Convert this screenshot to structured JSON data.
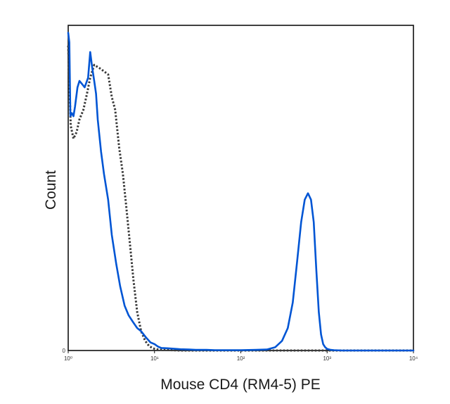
{
  "chart_data": {
    "type": "line",
    "title": "",
    "xlabel": "Mouse CD4 (RM4-5) PE",
    "ylabel": "Count",
    "x_scale": "log",
    "xlim": [
      1,
      10000
    ],
    "ylim": [
      0,
      1
    ],
    "x_ticks": [
      {
        "value": 1,
        "label": "10⁰"
      },
      {
        "value": 10,
        "label": "10¹"
      },
      {
        "value": 100,
        "label": "10²"
      },
      {
        "value": 1000,
        "label": "10³"
      },
      {
        "value": 10000,
        "label": "10⁴"
      }
    ],
    "y_ticks": [
      {
        "value": 0,
        "label": "0"
      }
    ],
    "grid": false,
    "legend": "none",
    "series": [
      {
        "style": "dotted",
        "color": "#3a3a3a",
        "x": [
          1.0,
          1.07,
          1.15,
          1.25,
          1.35,
          1.5,
          1.65,
          1.8,
          2.0,
          2.3,
          2.6,
          2.9,
          3.2,
          3.5,
          3.9,
          4.3,
          4.7,
          5.2,
          5.7,
          6.3,
          7.0,
          7.8,
          8.6,
          9.5,
          10.5,
          12,
          15,
          20,
          30,
          60,
          100,
          1000,
          10000
        ],
        "y": [
          0.95,
          0.7,
          0.66,
          0.68,
          0.72,
          0.75,
          0.8,
          0.85,
          0.89,
          0.88,
          0.87,
          0.86,
          0.79,
          0.75,
          0.63,
          0.55,
          0.45,
          0.33,
          0.22,
          0.12,
          0.06,
          0.03,
          0.015,
          0.007,
          0.004,
          0.002,
          0.001,
          0,
          0,
          0,
          0,
          0,
          0
        ]
      },
      {
        "style": "solid",
        "color": "#0055d4",
        "x": [
          1.0,
          1.03,
          1.06,
          1.1,
          1.15,
          1.2,
          1.28,
          1.35,
          1.45,
          1.55,
          1.7,
          1.8,
          1.9,
          2.0,
          2.1,
          2.2,
          2.4,
          2.6,
          2.9,
          3.2,
          3.6,
          4.0,
          4.5,
          5.0,
          5.6,
          6.3,
          7.0,
          8.0,
          9.0,
          10,
          11,
          12,
          14,
          16,
          20,
          25,
          30,
          40,
          50,
          70,
          100,
          150,
          200,
          250,
          300,
          350,
          400,
          450,
          500,
          550,
          600,
          650,
          700,
          750,
          800,
          850,
          900,
          950,
          1000,
          1100,
          1200,
          1500,
          2000,
          3000,
          5000,
          10000
        ],
        "y": [
          0.99,
          0.96,
          0.73,
          0.74,
          0.73,
          0.76,
          0.82,
          0.84,
          0.83,
          0.82,
          0.85,
          0.93,
          0.88,
          0.84,
          0.8,
          0.72,
          0.62,
          0.55,
          0.47,
          0.36,
          0.27,
          0.2,
          0.14,
          0.11,
          0.09,
          0.07,
          0.06,
          0.04,
          0.025,
          0.02,
          0.012,
          0.008,
          0.007,
          0.006,
          0.004,
          0.003,
          0.002,
          0.002,
          0.001,
          0.001,
          0.001,
          0.002,
          0.003,
          0.01,
          0.03,
          0.07,
          0.15,
          0.28,
          0.4,
          0.47,
          0.49,
          0.47,
          0.4,
          0.25,
          0.12,
          0.05,
          0.02,
          0.01,
          0.005,
          0.002,
          0.001,
          0,
          0,
          0,
          0,
          0
        ]
      }
    ]
  }
}
